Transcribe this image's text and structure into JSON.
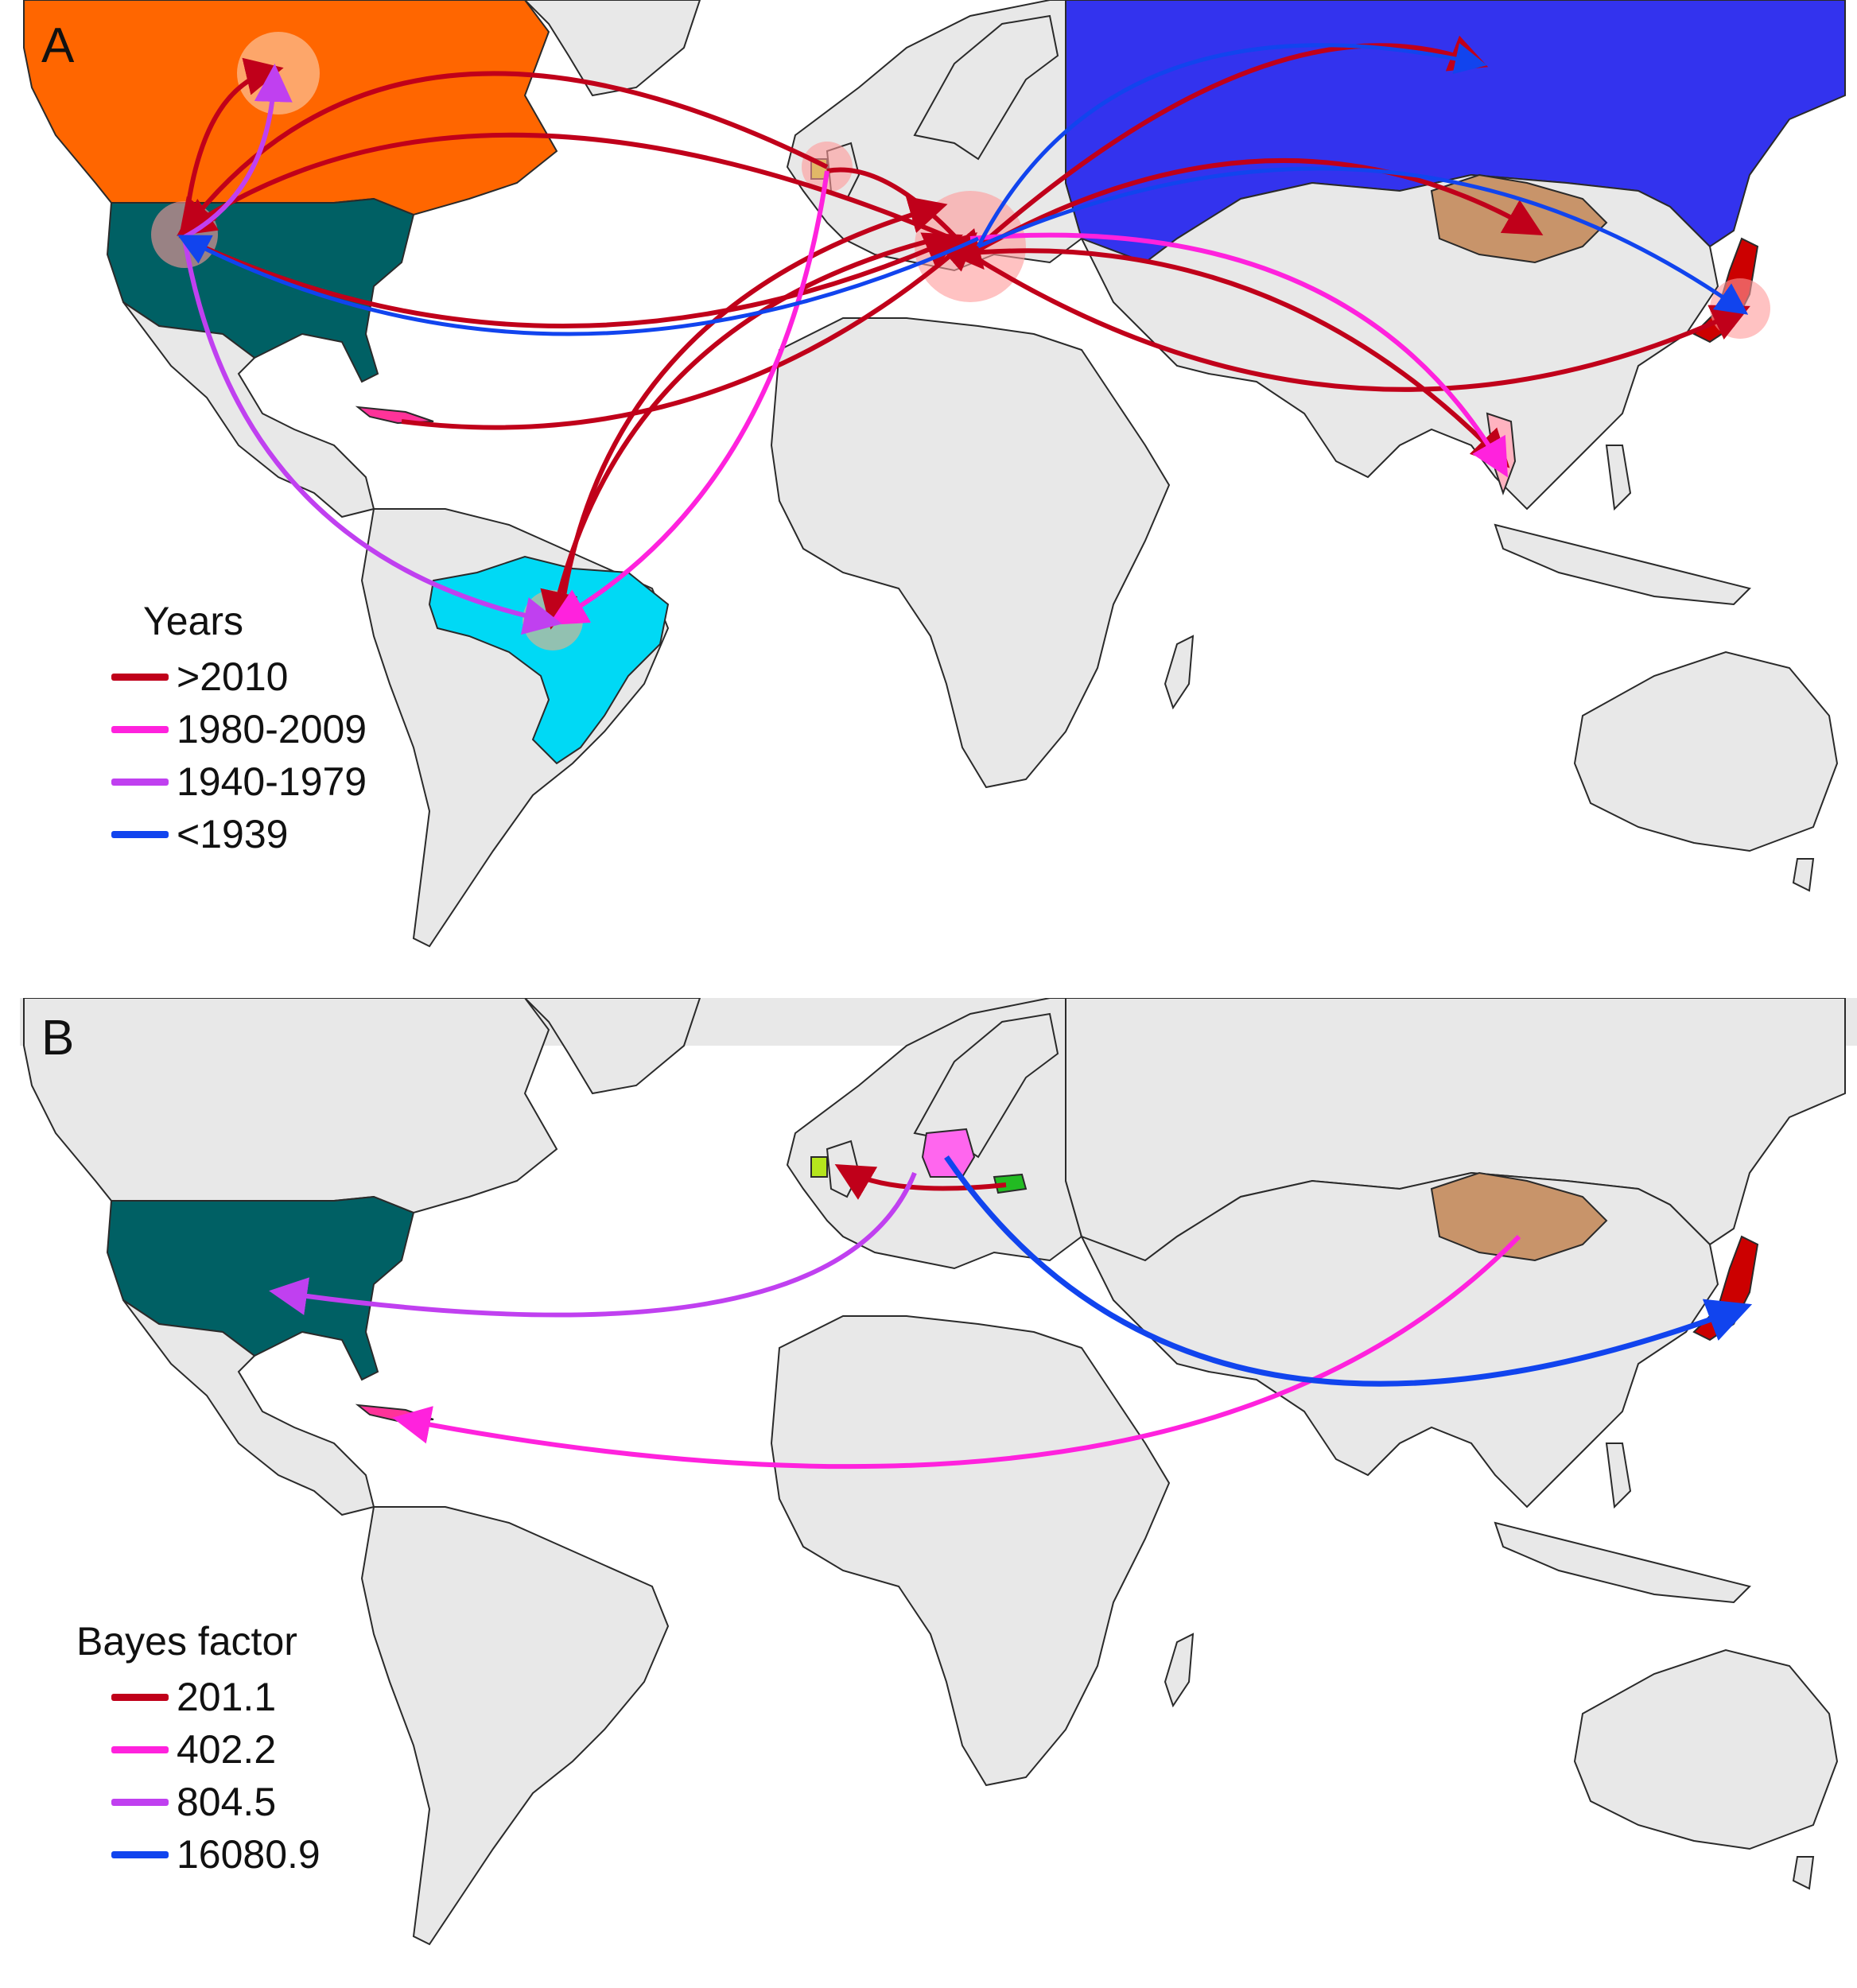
{
  "colors": {
    "ocean": "#ffffff",
    "land": "#e8e8e8",
    "land_stroke": "#2a2a2a",
    "canada": "#ff6600",
    "usa": "#006064",
    "russia": "#3333ee",
    "brazil": "#00d9f5",
    "mongolia": "#c8946a",
    "japan": "#cc0000",
    "germany": "#ff66ee",
    "ireland": "#b5e61d",
    "hungary": "#22bb22",
    "cuba": "#ff3399",
    "highlight_pink": "#ff9a9a",
    "highlight_peach": "#f4b183"
  },
  "panel_a": {
    "letter": "A",
    "legend": {
      "title": "Years",
      "items": [
        {
          "label": ">2010",
          "color": "#c0001a"
        },
        {
          "label": "1980-2009",
          "color": "#ff22dd"
        },
        {
          "label": "1940-1979",
          "color": "#c040f0"
        },
        {
          "label": "<1939",
          "color": "#1144ee"
        }
      ]
    }
  },
  "panel_b": {
    "letter": "B",
    "legend": {
      "title": "Bayes factor",
      "items": [
        {
          "label": "201.1",
          "color": "#c0001a"
        },
        {
          "label": "402.2",
          "color": "#ff22dd"
        },
        {
          "label": "804.5",
          "color": "#c040f0"
        },
        {
          "label": "16080.9",
          "color": "#1144ee"
        }
      ]
    }
  }
}
